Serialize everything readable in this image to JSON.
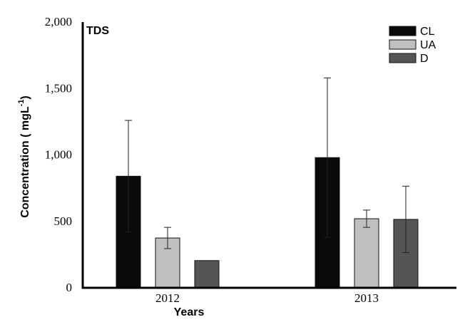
{
  "chart_data": {
    "type": "bar",
    "panel_label": "TDS",
    "categories": [
      "2012",
      "2013"
    ],
    "series": [
      {
        "name": "CL",
        "color": "#0a0a0a",
        "values": [
          840,
          980
        ],
        "error": [
          420,
          600
        ]
      },
      {
        "name": "UA",
        "color": "#c0c0c0",
        "values": [
          375,
          520
        ],
        "error": [
          80,
          65
        ]
      },
      {
        "name": "D",
        "color": "#555555",
        "values": [
          205,
          515
        ],
        "error": [
          0,
          250
        ]
      }
    ],
    "xlabel": "Years",
    "ylabel": "Concentration ( mgL",
    "ylabel_superscript": "-1",
    "ylabel_suffix": ")",
    "ylim": [
      0,
      2000
    ],
    "yticks": [
      "0",
      "500",
      "1,000",
      "1,500",
      "2,000"
    ],
    "ytick_values": [
      0,
      500,
      1000,
      1500,
      2000
    ],
    "legend_position": "top-right",
    "grid": false
  }
}
